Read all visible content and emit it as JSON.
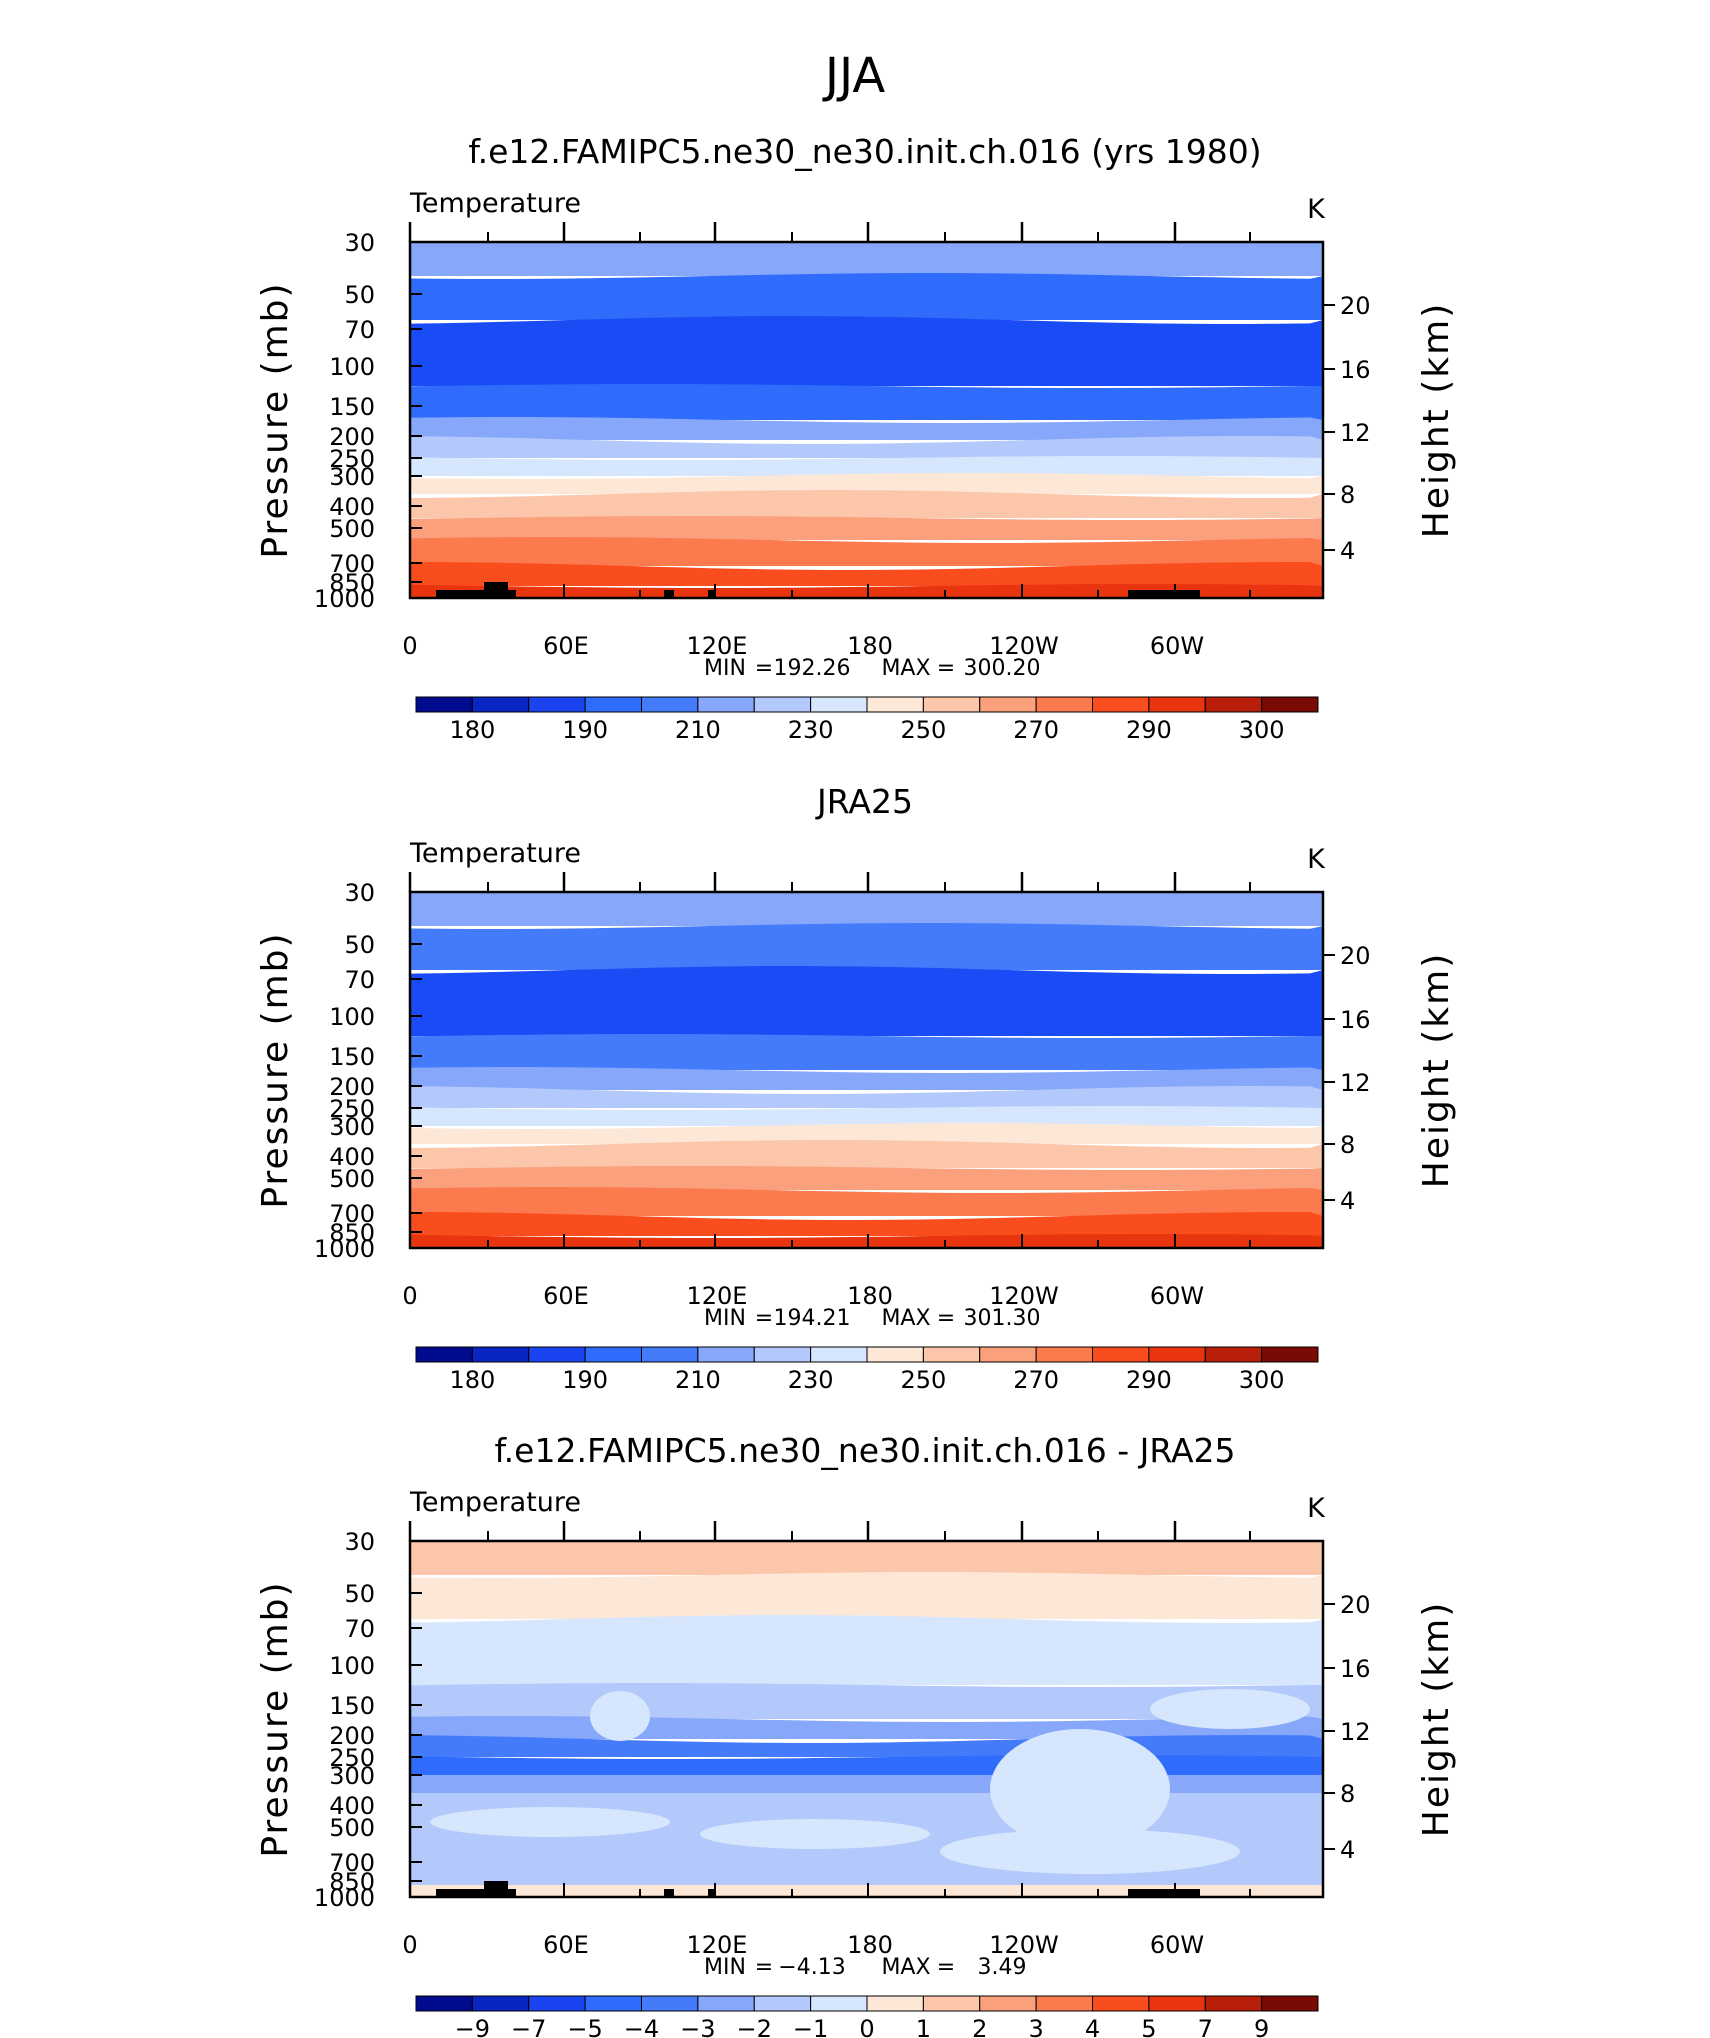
{
  "figure_title": "JJA",
  "chart_data": [
    {
      "type": "heatmap",
      "title": "f.e12.FAMIPC5.ne30_ne30.init.ch.016 (yrs 1980)",
      "field_label": "Temperature",
      "units": "K",
      "ylabel": "Pressure (mb)",
      "ylabel_right": "Height (km)",
      "stats": {
        "min_label": "MIN",
        "min": "192.26",
        "max_label": "MAX",
        "max": "300.20"
      },
      "x_ticks": [
        "0",
        "60E",
        "120E",
        "180",
        "120W",
        "60W"
      ],
      "y_ticks": [
        "30",
        "50",
        "70",
        "100",
        "150",
        "200",
        "250",
        "300",
        "400",
        "500",
        "700",
        "850",
        "1000"
      ],
      "y_ticks_right": [
        "20",
        "16",
        "12",
        "8",
        "4"
      ],
      "colorbar_labels": [
        "180",
        "190",
        "210",
        "230",
        "250",
        "270",
        "290",
        "300"
      ],
      "colors": [
        "#87a7fb",
        "#2f6cfb",
        "#1a4cf5",
        "#2f6cfb",
        "#87a7fb",
        "#b3c9fb",
        "#d6e6fc",
        "#fde8d8",
        "#fcc6aa",
        "#fba07c",
        "#fb7a4e",
        "#fa4d1e",
        "#e83510"
      ]
    },
    {
      "type": "heatmap",
      "title": "JRA25",
      "field_label": "Temperature",
      "units": "K",
      "ylabel": "Pressure (mb)",
      "ylabel_right": "Height (km)",
      "stats": {
        "min_label": "MIN",
        "min": "194.21",
        "max_label": "MAX",
        "max": "301.30"
      },
      "x_ticks": [
        "0",
        "60E",
        "120E",
        "180",
        "120W",
        "60W"
      ],
      "y_ticks": [
        "30",
        "50",
        "70",
        "100",
        "150",
        "200",
        "250",
        "300",
        "400",
        "500",
        "700",
        "850",
        "1000"
      ],
      "y_ticks_right": [
        "20",
        "16",
        "12",
        "8",
        "4"
      ],
      "colorbar_labels": [
        "180",
        "190",
        "210",
        "230",
        "250",
        "270",
        "290",
        "300"
      ],
      "colors": [
        "#87a7fb",
        "#447bfb",
        "#1a4cf5",
        "#447bfb",
        "#87a7fb",
        "#b3c9fb",
        "#d6e6fc",
        "#fde8d8",
        "#fcc6aa",
        "#fba07c",
        "#fb7a4e",
        "#fa4d1e",
        "#e83510"
      ]
    },
    {
      "type": "heatmap",
      "title": "f.e12.FAMIPC5.ne30_ne30.init.ch.016 - JRA25",
      "field_label": "Temperature",
      "units": "K",
      "ylabel": "Pressure (mb)",
      "ylabel_right": "Height (km)",
      "stats": {
        "min_label": "MIN",
        "min": "−4.13",
        "max_label": "MAX",
        "max": "3.49"
      },
      "x_ticks": [
        "0",
        "60E",
        "120E",
        "180",
        "120W",
        "60W"
      ],
      "y_ticks": [
        "30",
        "50",
        "70",
        "100",
        "150",
        "200",
        "250",
        "300",
        "400",
        "500",
        "700",
        "850",
        "1000"
      ],
      "y_ticks_right": [
        "20",
        "16",
        "12",
        "8",
        "4"
      ],
      "colorbar_labels": [
        "−9",
        "−7",
        "−5",
        "−4",
        "−3",
        "−2",
        "−1",
        "0",
        "1",
        "2",
        "3",
        "4",
        "5",
        "7",
        "9"
      ],
      "colors": [
        "#fcc6aa",
        "#fde8d8",
        "#d6e6fc",
        "#b3c9fb",
        "#87a7fb",
        "#447bfb",
        "#2f6cfb",
        "#87a7fb",
        "#b3c9fb",
        "#b3c9fb",
        "#b3c9fb",
        "#b3c9fb",
        "#b3c9fb"
      ]
    }
  ],
  "colorbar_colors": [
    "#000b8e",
    "#0a26c2",
    "#1a44f0",
    "#2f6cfb",
    "#447bfb",
    "#87a7fb",
    "#b3c9fb",
    "#d6e6fc",
    "#fde8d8",
    "#fcc6aa",
    "#fba07c",
    "#fb7a4e",
    "#fa4d1e",
    "#e83510",
    "#b81e08",
    "#7a0a04"
  ]
}
